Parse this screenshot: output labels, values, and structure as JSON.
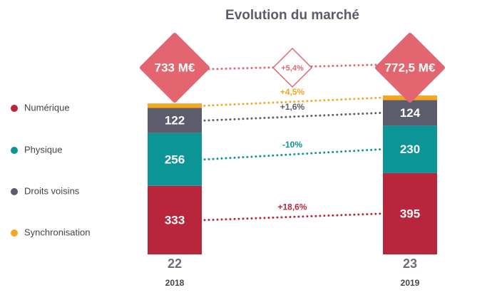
{
  "chart_data": {
    "type": "stacked-bar",
    "title": "Evolution du marché",
    "categories": [
      "2018",
      "2019"
    ],
    "series": [
      {
        "name": "Numérique",
        "color": "#b9253a",
        "values": [
          333,
          395
        ],
        "change": "+18,6%"
      },
      {
        "name": "Physique",
        "color": "#0b9597",
        "values": [
          256,
          230
        ],
        "change": "-10%"
      },
      {
        "name": "Droits voisins",
        "color": "#5b5d6c",
        "values": [
          122,
          124
        ],
        "change": "+1,6%"
      },
      {
        "name": "Synchronisation",
        "color": "#f5a623",
        "values": [
          22,
          23
        ],
        "change": "+4,5%"
      }
    ],
    "totals": [
      {
        "value": 733,
        "label": "733 M€"
      },
      {
        "value": 772.5,
        "label": "772,5 M€"
      }
    ],
    "total_change": "+5,4%",
    "total_color": "#e2656f"
  }
}
